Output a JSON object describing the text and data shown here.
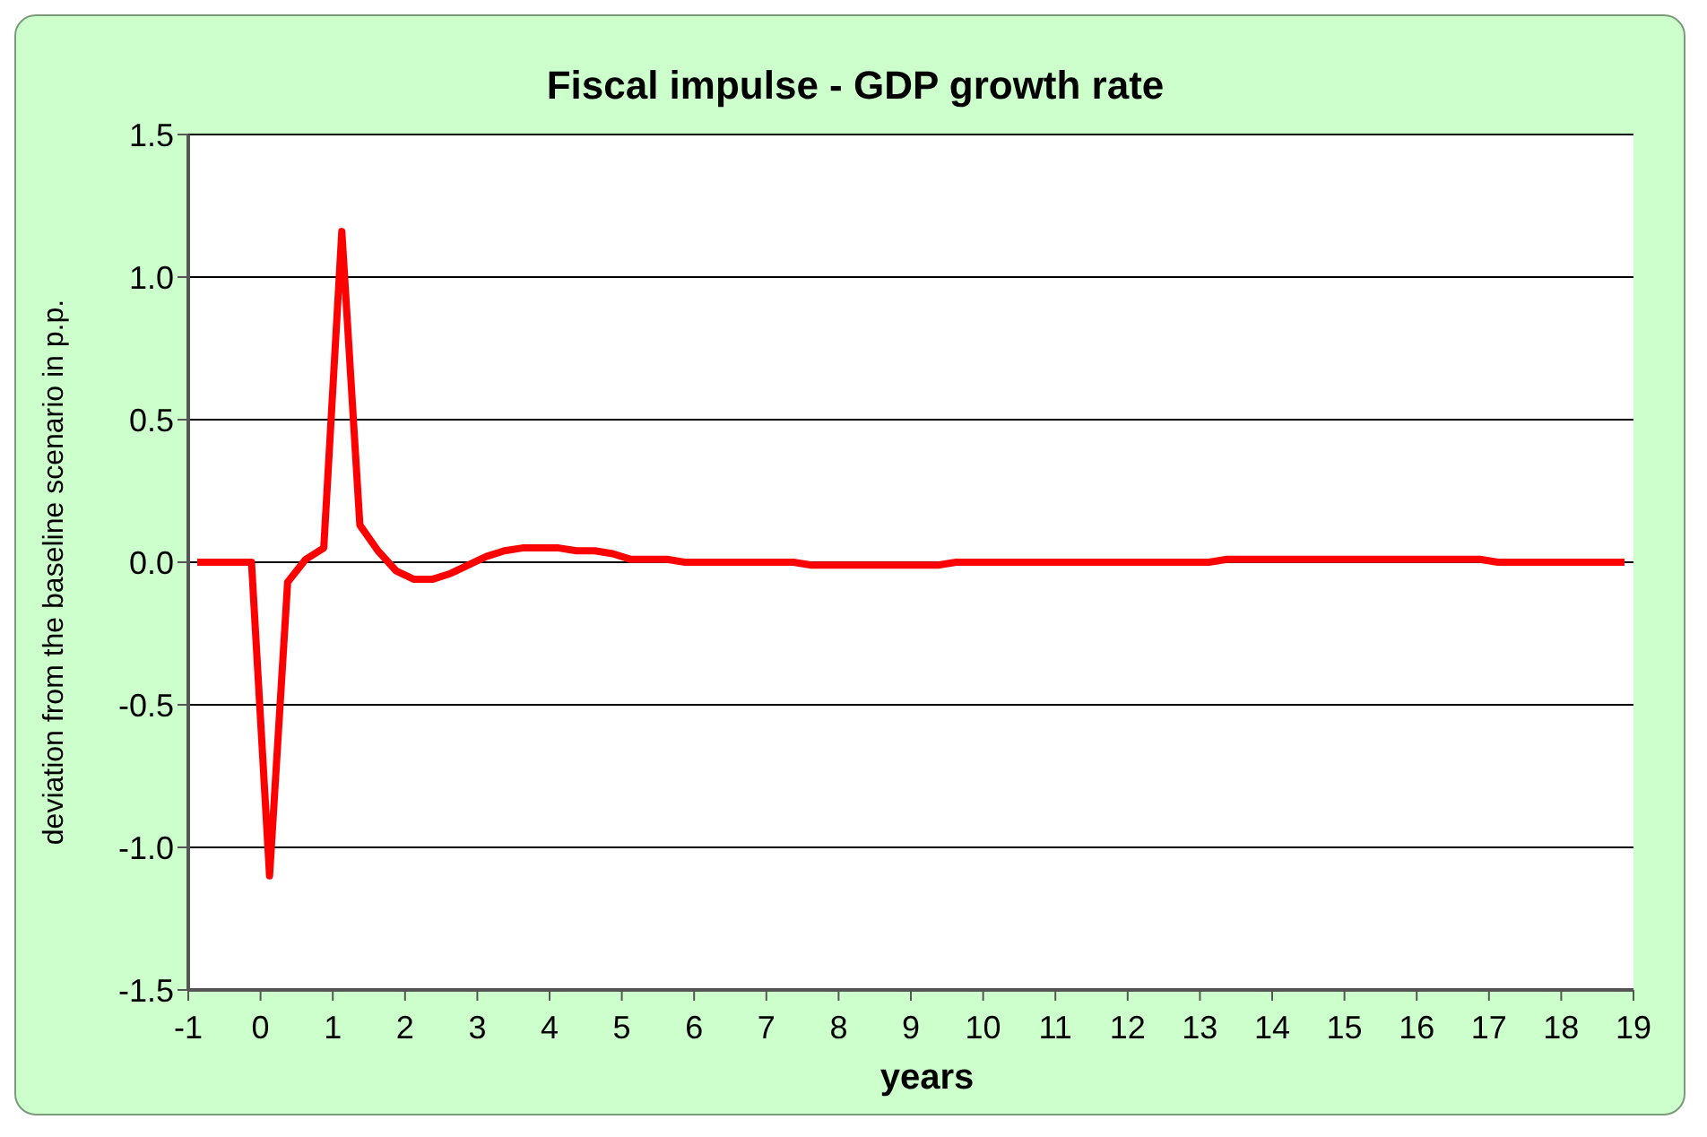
{
  "chart_data": {
    "type": "line",
    "title": "Fiscal impulse - GDP growth rate",
    "xlabel": "years",
    "ylabel": "deviation from the baseline scenario in p.p.",
    "x": [
      -0.875,
      -0.625,
      -0.375,
      -0.125,
      0.125,
      0.375,
      0.625,
      0.875,
      1.125,
      1.375,
      1.625,
      1.875,
      2.125,
      2.375,
      2.625,
      2.875,
      3.125,
      3.375,
      3.625,
      3.875,
      4.125,
      4.375,
      4.625,
      4.875,
      5.125,
      5.375,
      5.625,
      5.875,
      6.125,
      6.375,
      6.625,
      6.875,
      7.125,
      7.375,
      7.625,
      7.875,
      8.125,
      8.375,
      8.625,
      8.875,
      9.125,
      9.375,
      9.625,
      9.875,
      10.125,
      10.375,
      10.625,
      10.875,
      11.125,
      11.375,
      11.625,
      11.875,
      12.125,
      12.375,
      12.625,
      12.875,
      13.125,
      13.375,
      13.625,
      13.875,
      14.125,
      14.375,
      14.625,
      14.875,
      15.125,
      15.375,
      15.625,
      15.875,
      16.125,
      16.375,
      16.625,
      16.875,
      17.125,
      17.375,
      17.625,
      17.875,
      18.125,
      18.375,
      18.625,
      18.875
    ],
    "series": [
      {
        "color": "#ff0000",
        "values": [
          0,
          0,
          0,
          0,
          -1.1,
          -0.07,
          0.01,
          0.05,
          1.16,
          0.13,
          0.04,
          -0.03,
          -0.06,
          -0.06,
          -0.04,
          -0.01,
          0.02,
          0.04,
          0.05,
          0.05,
          0.05,
          0.04,
          0.04,
          0.03,
          0.01,
          0.01,
          0.01,
          0,
          0,
          0,
          0,
          0,
          0,
          0,
          -0.01,
          -0.01,
          -0.01,
          -0.01,
          -0.01,
          -0.01,
          -0.01,
          -0.01,
          0,
          0,
          0,
          0,
          0,
          0,
          0,
          0,
          0,
          0,
          0,
          0,
          0,
          0,
          0,
          0.01,
          0.01,
          0.01,
          0.01,
          0.01,
          0.01,
          0.01,
          0.01,
          0.01,
          0.01,
          0.01,
          0.01,
          0.01,
          0.01,
          0.01,
          0,
          0,
          0,
          0,
          0,
          0,
          0,
          0
        ]
      }
    ],
    "xlim": [
      -1,
      19
    ],
    "xticks": [
      -1,
      0,
      1,
      2,
      3,
      4,
      5,
      6,
      7,
      8,
      9,
      10,
      11,
      12,
      13,
      14,
      15,
      16,
      17,
      18,
      19
    ],
    "ylim": [
      -1.5,
      1.5
    ],
    "yticks": [
      {
        "value": -1.5,
        "label": "-1.5"
      },
      {
        "value": -1,
        "label": "-1.0"
      },
      {
        "value": -0.5,
        "label": "-0.5"
      },
      {
        "value": 0,
        "label": "0.0"
      },
      {
        "value": 0.5,
        "label": "0.5"
      },
      {
        "value": 1,
        "label": "1.0"
      },
      {
        "value": 1.5,
        "label": "1.5"
      }
    ],
    "grid": "y",
    "legend": false,
    "marker": "none",
    "line_style": "solid"
  }
}
